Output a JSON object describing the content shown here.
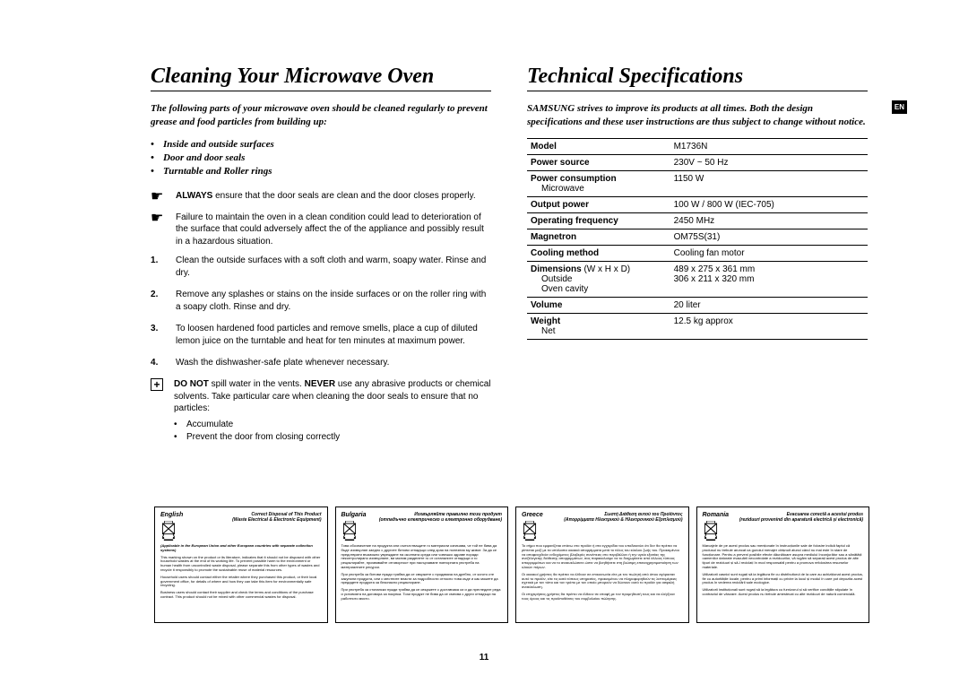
{
  "page_number": "11",
  "en_badge": "EN",
  "left": {
    "title": "Cleaning Your Microwave Oven",
    "intro": "The following parts of your microwave oven should be cleaned regularly to prevent grease and food particles from building up:",
    "bullets": [
      "Inside and outside surfaces",
      "Door and door seals",
      "Turntable and Roller rings"
    ],
    "tip1": "ALWAYS ensure that the door seals are clean and the door closes properly.",
    "tip1_strong": "ALWAYS",
    "tip2": "Failure to maintain the oven in a clean condition could lead to deterioration of the surface that could adversely affect the of the appliance and possibly result in a hazardous situation.",
    "steps": [
      "Clean the outside surfaces with a soft cloth and warm, soapy water. Rinse and dry.",
      "Remove any splashes or stains on the inside surfaces or on the roller ring with a soapy cloth. Rinse and dry.",
      "To loosen hardened food particles and remove smells, place a cup of diluted lemon juice on the turntable and heat for ten minutes at maximum power.",
      "Wash the dishwasher-safe plate whenever necessary."
    ],
    "warn": {
      "prefix": "DO NOT",
      "mid": "NEVER",
      "text_a": " spill water in the vents. ",
      "text_b": " use any abrasive products or chemical solvents. Take particular care when cleaning the door seals to ensure that no particles:",
      "subs": [
        "Accumulate",
        "Prevent the door from closing correctly"
      ]
    }
  },
  "right": {
    "title": "Technical Specifications",
    "intro": "SAMSUNG strives to improve its products at all times. Both the design specifications and these user instructions are thus subject to change without notice.",
    "table": [
      {
        "label": "Model",
        "value": "M1736N"
      },
      {
        "label": "Power source",
        "value": "230V ~ 50 Hz"
      },
      {
        "label": "Power consumption",
        "sublabel": "Microwave",
        "value": "",
        "subvalue": "1150 W"
      },
      {
        "label": "Output power",
        "value": "100 W / 800 W (IEC-705)"
      },
      {
        "label": "Operating frequency",
        "value": "2450 MHz"
      },
      {
        "label": "Magnetron",
        "value": "OM75S(31)"
      },
      {
        "label": "Cooling method",
        "value": "Cooling fan motor"
      },
      {
        "label": "Dimensions",
        "labelsuffix": " (W x H x D)",
        "sublabel": "Outside",
        "sublabel2": "Oven cavity",
        "subvalue": "489 x 275 x 361 mm",
        "subvalue2": "306 x 211 x 320 mm"
      },
      {
        "label": "Volume",
        "value": "20 liter"
      },
      {
        "label": "Weight",
        "sublabel": "Net",
        "subvalue": "12.5 kg approx"
      }
    ]
  },
  "disposal": [
    {
      "lang": "English",
      "title1": "Correct Disposal of This Product",
      "title2": "(Waste Electrical & Electronic Equipment)",
      "note": "(Applicable in the European Union and other European countries with separate collection systems)",
      "paras": [
        "This marking shown on the product or its literature, indicates that it should not be disposed with other household wastes at the end of its working life. To prevent possible harm to the environment or human health from uncontrolled waste disposal, please separate this from other types of wastes and recycle it responsibly to promote the sustainable reuse of material resources.",
        "Household users should contact either the retailer where they purchased this product, or their local government office, for details of where and how they can take this item for environmentally safe recycling.",
        "Business users should contact their supplier and check the terms and conditions of the purchase contract. This product should not be mixed with other commercial wastes for disposal."
      ]
    },
    {
      "lang": "Bulgaria",
      "title1": "Изхвърляйте правилно този продукт",
      "title2": "(отпадъчно електрическо и електронно оборудване)",
      "note": "",
      "paras": [
        "Това обозначение на продукта или съпътстващите го материали означава, че той не бива да бъде изхвърлян заедно с другите битови отпадъци след края на полезния му живот. За да се предотврати възможно увреждане на околната среда или човешко здраве поради неконтролирано изхвърляне, ви молим разделете го от останалите отпадъци и го рециклирайте, проявявайте отговорност при насърчаване повторната употреба на материалните ресурси.",
        "При употреба за битови нужди трябва да се свържете с продавача на дребно, от когото сте закупили продукта, или с местните власти за подробности относно това къде и как можете да предадете продукта за безопасно рециклиране.",
        "При употреба за стопански нужди трябва да се свържете с доставчика си и да прегледате реда и условията на договора за покупка. Този продукт не бива да се смесва с други отпадъци на работното място."
      ]
    },
    {
      "lang": "Greece",
      "title1": "Σωστή Διάθεση αυτού του Προϊόντος",
      "title2": "(Απορρίμματα Ηλεκτρικού & Ηλεκτρονικού Εξοπλισμού)",
      "note": "",
      "paras": [
        "Το σήμα που εμφανίζεται επάνω στο προϊόν ή στα εγχειρίδια του υποδεικνύει ότι δεν θα πρέπει να ρίπτεται μαζί με τα υπόλοιπα οικιακά απορρίμματα μετά το τέλος του κύκλου ζωής του. Προκειμένου να αποφευχθούν ενδεχόμενες βλαβερές συνέπειες στο περιβάλλον ή την υγεία εξαιτίας της ανεξέλεγκτης διάθεσης απορριμμάτων, σας παρακαλούμε να το διαχωρίσετε από άλλους τύπους απορριμμάτων και να το ανακυκλώσετε ώστε να βοηθήσετε στη βιώσιμη επαναχρησιμοποίηση των υλικών πόρων.",
        "Οι οικιακοί χρήστες θα πρέπει να έλθουν σε επικοινωνία είτε με τον πωλητή από όπου αγόρασαν αυτό το προϊόν, είτε τις κατά τόπους υπηρεσίες, προκειμένου να πληροφορηθούν τις λεπτομέρειες σχετικά με τον τόπο και τον τρόπο με τον οποίο μπορούν να δώσουν αυτό το προϊόν για ασφαλή ανακύκλωση.",
        "Οι επιχειρήσεις-χρήστες θα πρέπει να έλθουν σε επαφή με τον προμηθευτή τους και να ελέγξουν τους όρους και τις προϋποθέσεις του συμβολαίου πώλησης."
      ]
    },
    {
      "lang": "Romania",
      "title1": "Evacuarea corectă a acestui produs",
      "title2": "(reziduuri provenind din aparatură electrică și electronică)",
      "note": "",
      "paras": [
        "Marcajele de pe acest produs sau menționate în instrucțiunile sale de folosire indică faptul că produsul nu trebuie aruncat ca gunoiul menajer obișnuit atunci când nu mai este în stare de funcționare. Pentru a preveni posibile efecte dăunătoare asupra mediului înconjurător sau a sănătății oamenilor datorate evacuării necontrolate a reziduurilor, vă rugăm să separați acest produs de alte tipuri de reziduuri și să-l reciclați în mod responsabil pentru a promova refolosirea resurselor materiale.",
        "Utilizatorii casnici sunt rugați să ia legătura fie cu distribuitorul de la care au achiziționat acest produs, fie cu autoritățile locale, pentru a primi informații cu privire la locul și modul în care pot depozita acest produs în vederea reciclării sale ecologice.",
        "Utilizatorii instituționali sunt rugați să ia legătura cu furnizorul și să verifice condițiile stipulate în contractul de vânzare. Acest produs nu trebuie amestecat cu alte reziduuri de natură comercială."
      ]
    }
  ]
}
